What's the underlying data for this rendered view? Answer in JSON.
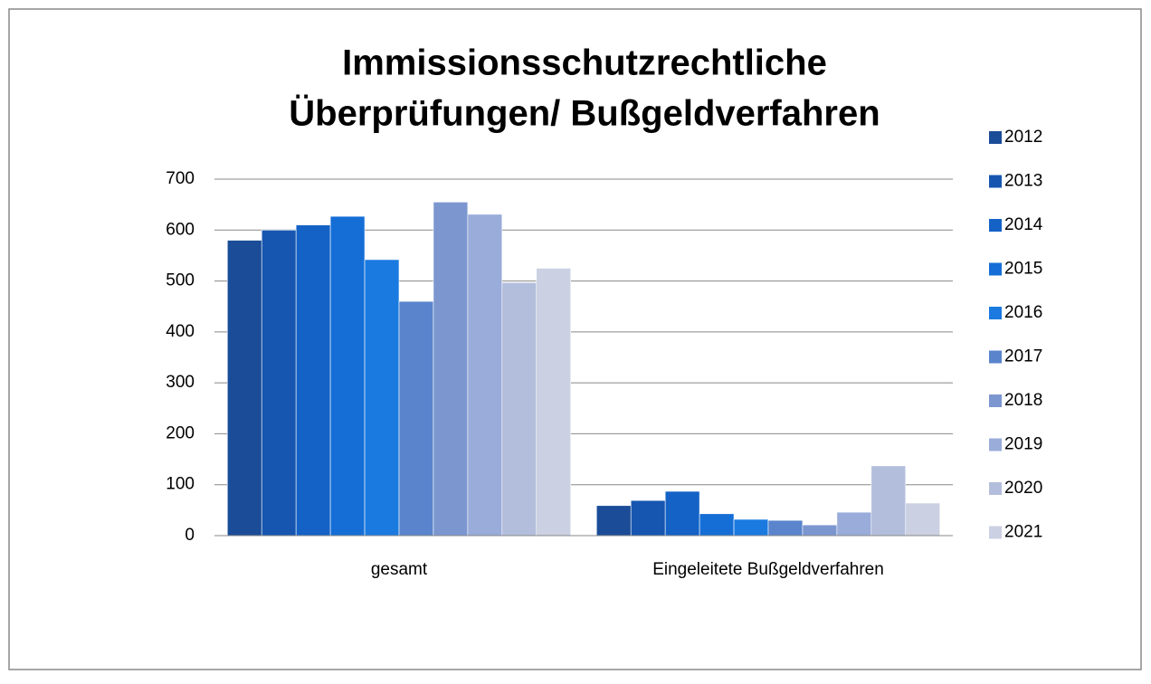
{
  "chart_data": {
    "type": "bar",
    "title": [
      "Immissionsschutzrechtliche",
      "Überprüfungen/ Bußgeldverfahren"
    ],
    "categories": [
      "gesamt",
      "Eingeleitete Bußgeldverfahren"
    ],
    "series": [
      {
        "name": "2012",
        "color": "#1a4c98",
        "values": [
          580,
          59
        ]
      },
      {
        "name": "2013",
        "color": "#1656b0",
        "values": [
          600,
          69
        ]
      },
      {
        "name": "2014",
        "color": "#1462c6",
        "values": [
          610,
          87
        ]
      },
      {
        "name": "2015",
        "color": "#156ed6",
        "values": [
          627,
          43
        ]
      },
      {
        "name": "2016",
        "color": "#1a7ae0",
        "values": [
          542,
          32
        ]
      },
      {
        "name": "2017",
        "color": "#5a84cc",
        "values": [
          460,
          30
        ]
      },
      {
        "name": "2018",
        "color": "#7c96d0",
        "values": [
          655,
          21
        ]
      },
      {
        "name": "2019",
        "color": "#99acda",
        "values": [
          631,
          46
        ]
      },
      {
        "name": "2020",
        "color": "#b3bedc",
        "values": [
          497,
          137
        ]
      },
      {
        "name": "2021",
        "color": "#cbd0e2",
        "values": [
          525,
          64
        ]
      }
    ],
    "ylim": [
      0,
      700
    ],
    "yticks": [
      0,
      100,
      200,
      300,
      400,
      500,
      600,
      700
    ],
    "grid": true,
    "legend": "right"
  }
}
